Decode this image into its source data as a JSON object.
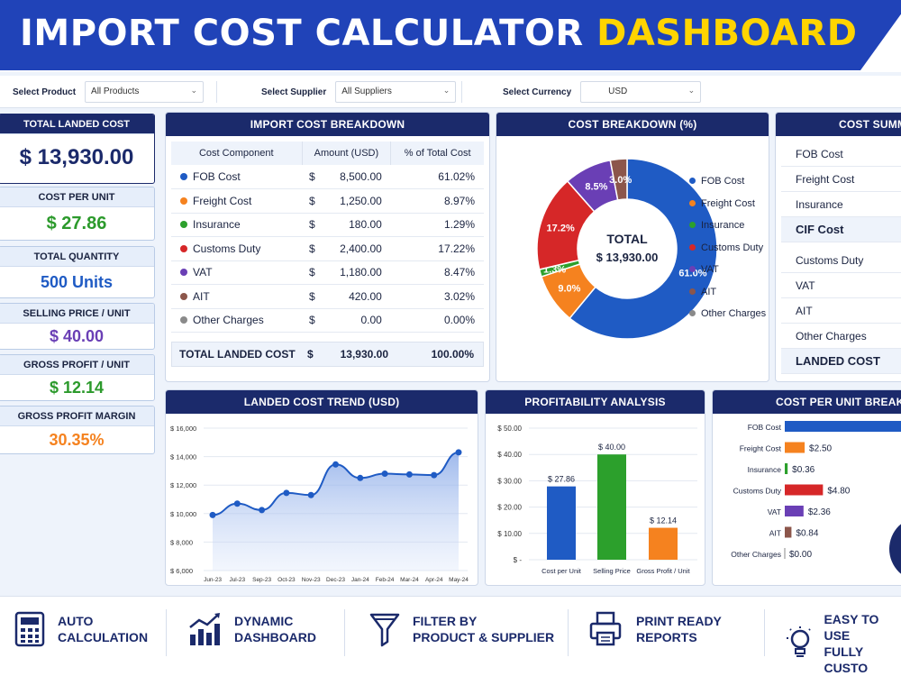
{
  "header": {
    "title_main": "IMPORT COST CALCULATOR",
    "title_accent": "DASHBOARD"
  },
  "filters": {
    "product": {
      "label": "Select Product",
      "value": "All Products"
    },
    "supplier": {
      "label": "Select Supplier",
      "value": "All Suppliers"
    },
    "currency": {
      "label": "Select Currency",
      "value": "USD"
    }
  },
  "kpis": {
    "total_landed_cost": {
      "label": "TOTAL LANDED COST",
      "value": "$ 13,930.00"
    },
    "cost_per_unit": {
      "label": "COST PER UNIT",
      "value": "$ 27.86"
    },
    "total_quantity": {
      "label": "TOTAL QUANTITY",
      "value": "500 Units"
    },
    "selling_price": {
      "label": "SELLING PRICE / UNIT",
      "value": "$ 40.00"
    },
    "gross_profit": {
      "label": "GROSS PROFIT / UNIT",
      "value": "$ 12.14"
    },
    "gross_margin": {
      "label": "GROSS PROFIT MARGIN",
      "value": "30.35%"
    }
  },
  "colors": {
    "fob": "#1f5bc4",
    "freight": "#f5821f",
    "insurance": "#2ca02c",
    "customs": "#d62728",
    "vat": "#6a3fb5",
    "ait": "#8c564b",
    "other": "#8a8a8a",
    "navy": "#1b2a6b"
  },
  "breakdown": {
    "title": "IMPORT COST BREAKDOWN",
    "columns": [
      "Cost Component",
      "Amount (USD)",
      "% of Total Cost"
    ],
    "currency_symbol": "$",
    "rows": [
      {
        "name": "FOB Cost",
        "amount": "8,500.00",
        "pct": "61.02%",
        "color": "#1f5bc4"
      },
      {
        "name": "Freight Cost",
        "amount": "1,250.00",
        "pct": "8.97%",
        "color": "#f5821f"
      },
      {
        "name": "Insurance",
        "amount": "180.00",
        "pct": "1.29%",
        "color": "#2ca02c"
      },
      {
        "name": "Customs Duty",
        "amount": "2,400.00",
        "pct": "17.22%",
        "color": "#d62728"
      },
      {
        "name": "VAT",
        "amount": "1,180.00",
        "pct": "8.47%",
        "color": "#6a3fb5"
      },
      {
        "name": "AIT",
        "amount": "420.00",
        "pct": "3.02%",
        "color": "#8c564b"
      },
      {
        "name": "Other Charges",
        "amount": "0.00",
        "pct": "0.00%",
        "color": "#8a8a8a"
      }
    ],
    "total": {
      "name": "TOTAL LANDED COST",
      "amount": "13,930.00",
      "pct": "100.00%"
    }
  },
  "cost_pct": {
    "title": "COST BREAKDOWN (%)",
    "center_label": "TOTAL",
    "center_value": "$ 13,930.00",
    "slices": [
      {
        "name": "FOB Cost",
        "pct": 61.0,
        "label": "61.0%",
        "color": "#1f5bc4"
      },
      {
        "name": "Freight Cost",
        "pct": 9.0,
        "label": "9.0%",
        "color": "#f5821f"
      },
      {
        "name": "Insurance",
        "pct": 1.3,
        "label": "1.3%",
        "color": "#2ca02c"
      },
      {
        "name": "Customs Duty",
        "pct": 17.2,
        "label": "17.2%",
        "color": "#d62728"
      },
      {
        "name": "VAT",
        "pct": 8.5,
        "label": "8.5%",
        "color": "#6a3fb5"
      },
      {
        "name": "AIT",
        "pct": 3.0,
        "label": "3.0%",
        "color": "#8c564b"
      }
    ],
    "legend": [
      {
        "name": "FOB Cost",
        "color": "#1f5bc4"
      },
      {
        "name": "Freight Cost",
        "color": "#f5821f"
      },
      {
        "name": "Insurance",
        "color": "#2ca02c"
      },
      {
        "name": "Customs Duty",
        "color": "#d62728"
      },
      {
        "name": "VAT",
        "color": "#6a3fb5"
      },
      {
        "name": "AIT",
        "color": "#8c564b"
      },
      {
        "name": "Other Charges",
        "color": "#8a8a8a"
      }
    ]
  },
  "summary": {
    "title": "COST SUMM",
    "rows": [
      {
        "label": "FOB Cost",
        "bold": false
      },
      {
        "label": "Freight Cost",
        "bold": false
      },
      {
        "label": "Insurance",
        "bold": false
      },
      {
        "label": "CIF Cost",
        "bold": true
      },
      {
        "label": "Customs Duty",
        "bold": false
      },
      {
        "label": "VAT",
        "bold": false
      },
      {
        "label": "AIT",
        "bold": false
      },
      {
        "label": "Other Charges",
        "bold": false
      },
      {
        "label": "LANDED COST",
        "bold": true
      }
    ]
  },
  "trend_panel": {
    "title": "LANDED COST TREND (USD)"
  },
  "profit_panel": {
    "title": "PROFITABILITY ANALYSIS"
  },
  "unit_panel": {
    "title": "COST PER UNIT BREAKD"
  },
  "chart_data": [
    {
      "type": "area",
      "title": "LANDED COST TREND (USD)",
      "categories": [
        "Jun-23",
        "Jul-23",
        "Sep-23",
        "Oct-23",
        "Nov-23",
        "Dec-23",
        "Jan-24",
        "Feb-24",
        "Mar-24",
        "Apr-24",
        "May-24"
      ],
      "values": [
        9900,
        10700,
        10250,
        11450,
        11300,
        13450,
        12500,
        12800,
        12750,
        12700,
        14300
      ],
      "ylim": [
        6000,
        16000
      ],
      "yticks": [
        "$ 6,000",
        "$ 8,000",
        "$ 10,000",
        "$ 12,000",
        "$ 14,000",
        "$ 16,000"
      ],
      "ytick_values": [
        6000,
        8000,
        10000,
        12000,
        14000,
        16000
      ],
      "grid": true
    },
    {
      "type": "bar",
      "title": "PROFITABILITY ANALYSIS",
      "categories": [
        "Cost per Unit",
        "Selling Price",
        "Gross Profit / Unit"
      ],
      "values": [
        27.86,
        40.0,
        12.14
      ],
      "labels": [
        "$ 27.86",
        "$ 40.00",
        "$ 12.14"
      ],
      "colors": [
        "#1f5bc4",
        "#2ca02c",
        "#f5821f"
      ],
      "ylim": [
        0,
        50
      ],
      "yticks": [
        "$ -",
        "$ 10.00",
        "$ 20.00",
        "$ 30.00",
        "$ 40.00",
        "$ 50.00"
      ],
      "ytick_values": [
        0,
        10,
        20,
        30,
        40,
        50
      ]
    },
    {
      "type": "bar",
      "orientation": "horizontal",
      "title": "COST PER UNIT BREAKD",
      "categories": [
        "FOB Cost",
        "Freight Cost",
        "Insurance",
        "Customs Duty",
        "VAT",
        "AIT",
        "Other Charges"
      ],
      "values": [
        17.0,
        2.5,
        0.36,
        4.8,
        2.36,
        0.84,
        0.0
      ],
      "labels": [
        "",
        "$2.50",
        "$0.36",
        "$4.80",
        "$2.36",
        "$0.84",
        "$0.00"
      ],
      "colors": [
        "#1f5bc4",
        "#f5821f",
        "#2ca02c",
        "#d62728",
        "#6a3fb5",
        "#8c564b",
        "#8a8a8a"
      ]
    }
  ],
  "footer": {
    "features": [
      {
        "text": "AUTO\nCALCULATION",
        "icon": "calculator-icon"
      },
      {
        "text": "DYNAMIC\nDASHBOARD",
        "icon": "bar-chart-icon"
      },
      {
        "text": "FILTER BY\nPRODUCT & SUPPLIER",
        "icon": "funnel-icon"
      },
      {
        "text": "PRINT READY\nREPORTS",
        "icon": "printer-icon"
      },
      {
        "text": "EASY TO USE\nFULLY CUSTO",
        "icon": "lightbulb-icon"
      }
    ]
  }
}
